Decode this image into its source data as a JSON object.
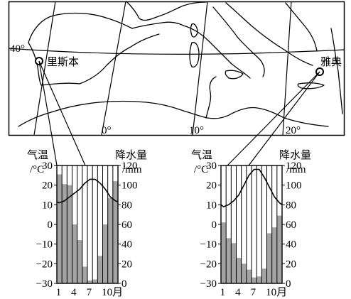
{
  "map": {
    "lat_label": "40°",
    "lon_labels": [
      "0°",
      "10°",
      "20°"
    ],
    "cities": [
      {
        "name": "里斯本"
      },
      {
        "name": "雅典"
      }
    ]
  },
  "chart_data": [
    {
      "type": "bar",
      "city": "里斯本",
      "title": "",
      "ylabel_left": "气温",
      "ylabel_left_unit": "/°C",
      "ylabel_right": "降水量",
      "ylabel_right_unit": "/mm",
      "x": [
        1,
        2,
        3,
        4,
        5,
        6,
        7,
        8,
        9,
        10,
        11,
        12
      ],
      "x_tick_labels": [
        "1",
        "4",
        "7",
        "10月"
      ],
      "temperature_ylim": [
        -30,
        30
      ],
      "temperature_ticks": [
        "30",
        "20",
        "10",
        "0",
        "−10",
        "−20",
        "−30"
      ],
      "precip_ylim": [
        0,
        120
      ],
      "precip_ticks": [
        "120",
        "100",
        "80",
        "60",
        "40",
        "20",
        "0"
      ],
      "series": [
        {
          "name": "temperature",
          "kind": "line",
          "values": [
            11,
            12,
            14,
            16,
            18,
            21,
            23,
            23,
            21,
            18,
            14,
            12
          ]
        },
        {
          "name": "precipitation",
          "kind": "bar",
          "values": [
            111,
            101,
            100,
            60,
            44,
            17,
            3,
            4,
            28,
            60,
            87,
            104
          ]
        }
      ]
    },
    {
      "type": "bar",
      "city": "雅典",
      "title": "",
      "ylabel_left": "气温",
      "ylabel_left_unit": "/°C",
      "ylabel_right": "降水量",
      "ylabel_right_unit": "/mm",
      "x": [
        1,
        2,
        3,
        4,
        5,
        6,
        7,
        8,
        9,
        10,
        11,
        12
      ],
      "x_tick_labels": [
        "1",
        "4",
        "7",
        "10月"
      ],
      "temperature_ylim": [
        -30,
        30
      ],
      "temperature_ticks": [
        "30",
        "20",
        "10",
        "0",
        "−10",
        "−20",
        "−30"
      ],
      "precip_ylim": [
        0,
        120
      ],
      "precip_ticks": [
        "120",
        "100",
        "80",
        "60",
        "40",
        "20",
        "0"
      ],
      "series": [
        {
          "name": "temperature",
          "kind": "line",
          "values": [
            9,
            10,
            12,
            15,
            20,
            25,
            28,
            28,
            24,
            19,
            14,
            11
          ]
        },
        {
          "name": "precipitation",
          "kind": "bar",
          "values": [
            62,
            46,
            41,
            26,
            20,
            14,
            6,
            7,
            15,
            51,
            57,
            69
          ]
        }
      ]
    }
  ]
}
